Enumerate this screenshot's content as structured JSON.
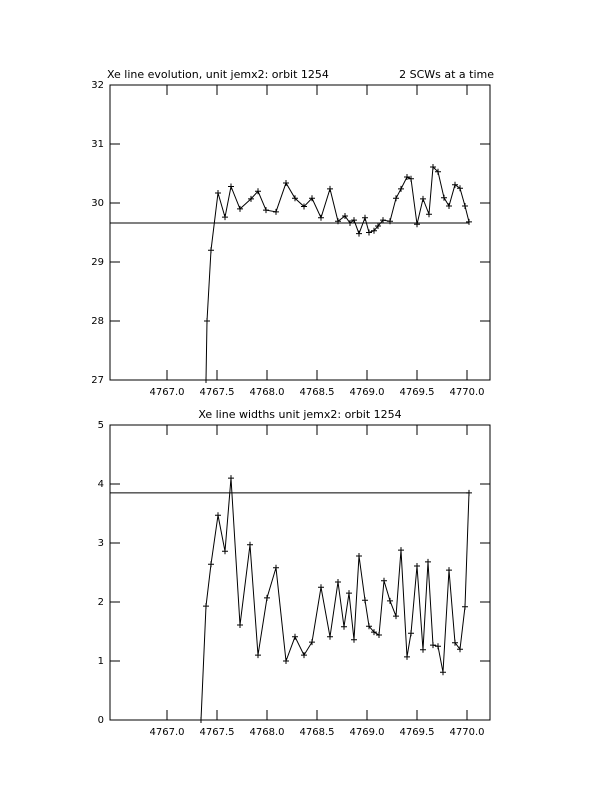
{
  "chart_data": [
    {
      "type": "line",
      "title": "Xe line evolution, unit jemx2: orbit 1254",
      "subtitle": "2 SCWs at a time",
      "x": [
        4767.39,
        4767.4,
        4767.44,
        4767.51,
        4767.58,
        4767.64,
        4767.73,
        4767.84,
        4767.91,
        4767.99,
        4768.09,
        4768.19,
        4768.28,
        4768.37,
        4768.45,
        4768.54,
        4768.63,
        4768.71,
        4768.78,
        4768.83,
        4768.87,
        4768.92,
        4768.98,
        4769.02,
        4769.07,
        4769.11,
        4769.16,
        4769.23,
        4769.29,
        4769.34,
        4769.4,
        4769.44,
        4769.5,
        4769.56,
        4769.62,
        4769.66,
        4769.71,
        4769.77,
        4769.82,
        4769.88,
        4769.93,
        4769.98,
        4770.02
      ],
      "series": [
        {
          "color": "#000000",
          "values": [
            27,
            28.0,
            29.2,
            30.17,
            29.76,
            30.28,
            29.9,
            30.07,
            30.2,
            29.88,
            29.85,
            30.34,
            30.08,
            29.94,
            30.08,
            29.75,
            30.24,
            29.69,
            29.78,
            29.66,
            29.71,
            29.48,
            29.75,
            29.5,
            29.53,
            29.61,
            29.71,
            29.69,
            30.08,
            30.24,
            30.44,
            30.41,
            29.64,
            30.07,
            29.81,
            30.61,
            30.53,
            30.09,
            29.95,
            30.31,
            30.25,
            29.95,
            29.68
          ]
        }
      ],
      "reference_line": 29.66,
      "xlim": [
        4766.43,
        4770.23
      ],
      "xticks": [
        {
          "value": 4767.0,
          "label": "4767.0"
        },
        {
          "value": 4767.5,
          "label": "4767.5"
        },
        {
          "value": 4768.0,
          "label": "4768.0"
        },
        {
          "value": 4768.5,
          "label": "4768.5"
        },
        {
          "value": 4769.0,
          "label": "4769.0"
        },
        {
          "value": 4769.5,
          "label": "4769.5"
        },
        {
          "value": 4770.0,
          "label": "4770.0"
        }
      ],
      "ylim": [
        27,
        32
      ],
      "yticks": [
        27,
        28,
        29,
        30,
        31,
        32
      ]
    },
    {
      "type": "line",
      "title": "Xe line widths unit jemx2: orbit 1254",
      "x": [
        4767.34,
        4767.39,
        4767.44,
        4767.51,
        4767.58,
        4767.64,
        4767.73,
        4767.83,
        4767.91,
        4768.0,
        4768.09,
        4768.19,
        4768.28,
        4768.37,
        4768.45,
        4768.54,
        4768.63,
        4768.71,
        4768.77,
        4768.82,
        4768.87,
        4768.92,
        4768.98,
        4769.02,
        4769.07,
        4769.12,
        4769.17,
        4769.23,
        4769.29,
        4769.34,
        4769.4,
        4769.44,
        4769.5,
        4769.56,
        4769.61,
        4769.66,
        4769.71,
        4769.76,
        4769.82,
        4769.88,
        4769.93,
        4769.98,
        4770.02
      ],
      "series": [
        {
          "color": "#000000",
          "values": [
            0,
            1.93,
            2.64,
            3.47,
            2.86,
            4.1,
            1.61,
            2.97,
            1.1,
            2.07,
            2.58,
            1.0,
            1.41,
            1.1,
            1.32,
            2.25,
            1.41,
            2.34,
            1.58,
            2.15,
            1.36,
            2.78,
            2.03,
            1.59,
            1.49,
            1.44,
            2.36,
            2.02,
            1.76,
            2.88,
            1.07,
            1.47,
            2.61,
            1.19,
            2.68,
            1.27,
            1.25,
            0.81,
            2.54,
            1.31,
            1.2,
            1.92,
            3.85
          ]
        }
      ],
      "reference_line": 3.85,
      "xlim": [
        4766.43,
        4770.23
      ],
      "xticks": [
        {
          "value": 4767.0,
          "label": "4767.0"
        },
        {
          "value": 4767.5,
          "label": "4767.5"
        },
        {
          "value": 4768.0,
          "label": "4768.0"
        },
        {
          "value": 4768.5,
          "label": "4768.5"
        },
        {
          "value": 4769.0,
          "label": "4769.0"
        },
        {
          "value": 4769.5,
          "label": "4769.5"
        },
        {
          "value": 4770.0,
          "label": "4770.0"
        }
      ],
      "ylim": [
        0,
        5
      ],
      "yticks": [
        0,
        1,
        2,
        3,
        4,
        5
      ]
    }
  ]
}
